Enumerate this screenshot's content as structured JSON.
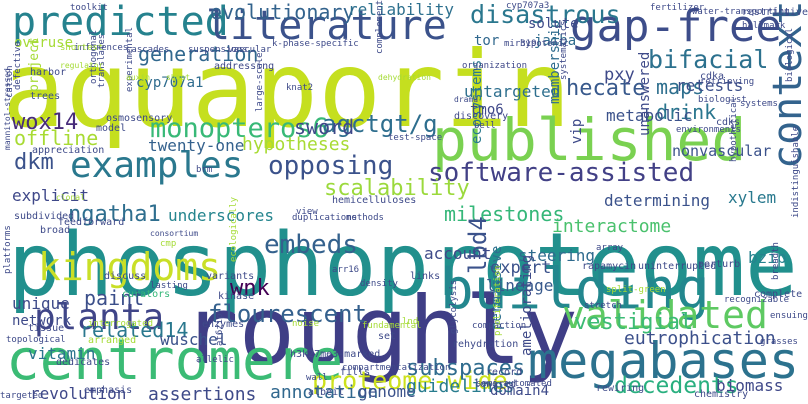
{
  "words": [
    {
      "text": "aquaporin",
      "color": "#c5df1f"
    },
    {
      "text": "phosphoproteome",
      "color": "#21908d"
    },
    {
      "text": "roughly",
      "color": "#3f3e86"
    },
    {
      "text": "published",
      "color": "#7ad151"
    },
    {
      "text": "centromere",
      "color": "#3bbb75"
    },
    {
      "text": "building",
      "color": "#23878e"
    },
    {
      "text": "megabases",
      "color": "#2c728e"
    },
    {
      "text": "gap-free",
      "color": "#3d4d8a"
    },
    {
      "text": "predicted",
      "color": "#25828e"
    },
    {
      "text": "literature",
      "color": "#3b528b"
    },
    {
      "text": "kingdoms",
      "color": "#c9df27"
    },
    {
      "text": "validated",
      "color": "#5ec962"
    },
    {
      "text": "examples",
      "color": "#2a788e"
    },
    {
      "text": "planta",
      "color": "#404588"
    },
    {
      "text": "context",
      "color": "#33638d"
    },
    {
      "text": "software-assisted",
      "color": "#424086"
    },
    {
      "text": "proteome-wide",
      "color": "#cde11d"
    },
    {
      "text": "monopteros6",
      "color": "#38b977"
    },
    {
      "text": "disastrous",
      "color": "#2a778e"
    },
    {
      "text": "flourescent",
      "color": "#34608d"
    },
    {
      "text": "agctgt/g",
      "color": "#2e6e8e"
    },
    {
      "text": "opposing",
      "color": "#3b528b"
    },
    {
      "text": "bifacial",
      "color": "#2c718e"
    },
    {
      "text": "decedents",
      "color": "#29af7f"
    },
    {
      "text": "eutrophication",
      "color": "#3c508b"
    },
    {
      "text": "milestones",
      "color": "#35b779"
    },
    {
      "text": "evolutionary",
      "color": "#33638d"
    },
    {
      "text": "reliability",
      "color": "#2d708e"
    },
    {
      "text": "maps",
      "color": "#2e6f8e"
    },
    {
      "text": "drink",
      "color": "#2a768e"
    },
    {
      "text": "wox14",
      "color": "#472c7a"
    },
    {
      "text": "dkm",
      "color": "#3b528b"
    },
    {
      "text": "offline",
      "color": "#a8db34"
    },
    {
      "text": "embeds",
      "color": "#34618d"
    },
    {
      "text": "related14",
      "color": "#2a788e"
    },
    {
      "text": "scalability",
      "color": "#9bd93c"
    },
    {
      "text": "lbd4",
      "color": "#3b528b"
    },
    {
      "text": "subspaces",
      "color": "#2f6c8e"
    },
    {
      "text": "vestigial",
      "color": "#3cbb75"
    },
    {
      "text": "generation",
      "color": "#31688e"
    },
    {
      "text": "hecate",
      "color": "#38598c"
    },
    {
      "text": "interactome",
      "color": "#4ac16d"
    },
    {
      "text": "wnk",
      "color": "#440154"
    },
    {
      "text": "ngatha1",
      "color": "#2e6e8e"
    },
    {
      "text": "paint",
      "color": "#3c4f8a"
    },
    {
      "text": "sword",
      "color": "#3f4889"
    },
    {
      "text": "hypotheses",
      "color": "#a8db34"
    },
    {
      "text": "annotation",
      "color": "#31688e"
    },
    {
      "text": "assertions",
      "color": "#3e4a89"
    },
    {
      "text": "guidelines",
      "color": "#287c8e"
    },
    {
      "text": "genome",
      "color": "#3b528b"
    },
    {
      "text": "revolution",
      "color": "#3f4889"
    },
    {
      "text": "vitamin",
      "color": "#2b748e"
    },
    {
      "text": "wuschel",
      "color": "#3b528b"
    },
    {
      "text": "underscores",
      "color": "#25858e"
    },
    {
      "text": "twenty-one",
      "color": "#34618d"
    },
    {
      "text": "expert",
      "color": "#3b528b"
    },
    {
      "text": "lineage",
      "color": "#38598c"
    },
    {
      "text": "steering",
      "color": "#2f6b8e"
    },
    {
      "text": "account",
      "color": "#3e4a89"
    },
    {
      "text": "bzip",
      "color": "#26828e"
    },
    {
      "text": "xylem",
      "color": "#29798e"
    },
    {
      "text": "determining",
      "color": "#3b528b"
    },
    {
      "text": "untargeted",
      "color": "#2e6f8e"
    },
    {
      "text": "pxy",
      "color": "#3e4989"
    },
    {
      "text": "retests",
      "color": "#3c4f8a"
    },
    {
      "text": "metabolic",
      "color": "#3b528b"
    },
    {
      "text": "nonvascular",
      "color": "#3b528b"
    },
    {
      "text": "membership",
      "color": "#2f6c8e"
    },
    {
      "text": "ecosystems",
      "color": "#29798e"
    },
    {
      "text": "domain4",
      "color": "#3e4a89"
    },
    {
      "text": "biomass",
      "color": "#3f4889"
    },
    {
      "text": "unique",
      "color": "#3e4a89"
    },
    {
      "text": "network",
      "color": "#3e4a89"
    },
    {
      "text": "explicit",
      "color": "#3f4889"
    },
    {
      "text": "project",
      "color": "#a5db36"
    },
    {
      "text": "overuse",
      "color": "#a5db36"
    },
    {
      "text": "cyp707a1",
      "color": "#2f6c8e"
    },
    {
      "text": "tor",
      "color": "#31688e"
    },
    {
      "text": "jaiba",
      "color": "#2f6c8e"
    },
    {
      "text": "solute",
      "color": "#3e4a89"
    },
    {
      "text": "tmo6",
      "color": "#3f4889"
    },
    {
      "text": "vip",
      "color": "#3e4a89"
    },
    {
      "text": "unanswered",
      "color": "#3e4a89"
    },
    {
      "text": "ameliorating",
      "color": "#3e4a89"
    },
    {
      "text": "permissive",
      "color": "#2e6f8e"
    },
    {
      "text": "harbor",
      "color": "#3e4a89"
    },
    {
      "text": "trees",
      "color": "#3b528b"
    },
    {
      "text": "model",
      "color": "#3e4a89"
    },
    {
      "text": "curators",
      "color": "#35b779"
    },
    {
      "text": "organization",
      "color": "#3f4889"
    },
    {
      "text": "discovery",
      "color": "#3f4889"
    },
    {
      "text": "addressing",
      "color": "#3f4889"
    },
    {
      "text": "rapamycin",
      "color": "#3e4a89"
    },
    {
      "text": "uninterrupted",
      "color": "#3e4a89"
    },
    {
      "text": "record",
      "color": "#3e4a89"
    },
    {
      "text": "lowered",
      "color": "#3e4a89"
    },
    {
      "text": "rewiring",
      "color": "#3e4a89"
    },
    {
      "text": "chemistry",
      "color": "#3e4a89"
    },
    {
      "text": "enzymes",
      "color": "#3e4a89"
    },
    {
      "text": "set",
      "color": "#3e4a89"
    },
    {
      "text": "albeit",
      "color": "#3e4a89"
    },
    {
      "text": "fills",
      "color": "#3e4a89"
    },
    {
      "text": "h3k27me3-marked",
      "color": "#3e4a89"
    },
    {
      "text": "hemicelluloses",
      "color": "#3e4a89"
    },
    {
      "text": "brm",
      "color": "#3e4a89"
    },
    {
      "text": "appreciation",
      "color": "#3e4a89"
    },
    {
      "text": "osmosensory",
      "color": "#3e4a89"
    },
    {
      "text": "emphasis",
      "color": "#3e4a89"
    },
    {
      "text": "dedicates",
      "color": "#3e4a89"
    },
    {
      "text": "tissue",
      "color": "#3e4a89"
    },
    {
      "text": "arranged",
      "color": "#a5db36"
    },
    {
      "text": "discuss",
      "color": "#3e4a89"
    },
    {
      "text": "variants",
      "color": "#3e4a89"
    },
    {
      "text": "kinase",
      "color": "#3e4a89"
    },
    {
      "text": "subdivided",
      "color": "#3e4a89"
    },
    {
      "text": "broad",
      "color": "#3e4a89"
    },
    {
      "text": "feedforward",
      "color": "#3e4a89"
    },
    {
      "text": "view",
      "color": "#3e4a89"
    },
    {
      "text": "test-space",
      "color": "#3e4a89"
    },
    {
      "text": "links",
      "color": "#3e4a89"
    },
    {
      "text": "rehydration",
      "color": "#3e4a89"
    },
    {
      "text": "perturb",
      "color": "#3e4a89"
    },
    {
      "text": "complete",
      "color": "#3e4a89"
    },
    {
      "text": "cdka",
      "color": "#3e4a89"
    },
    {
      "text": "cdks",
      "color": "#3e4a89"
    },
    {
      "text": "biologist",
      "color": "#3e4a89"
    },
    {
      "text": "environments",
      "color": "#3e4a89"
    },
    {
      "text": "systems",
      "color": "#3e4a89"
    },
    {
      "text": "retrieving",
      "color": "#3e4a89"
    },
    {
      "text": "restrictive",
      "color": "#3e4a89"
    },
    {
      "text": "fertilizer",
      "color": "#3e4a89"
    },
    {
      "text": "toolkit",
      "color": "#3e4a89"
    },
    {
      "text": "cyp707a3",
      "color": "#3e4a89"
    },
    {
      "text": "mir319",
      "color": "#3e4a89"
    },
    {
      "text": "hypotonic",
      "color": "#3e4a89"
    },
    {
      "text": "cascades",
      "color": "#3e4a89"
    },
    {
      "text": "suspensions",
      "color": "#3e4a89"
    },
    {
      "text": "vascular",
      "color": "#3e4a89"
    },
    {
      "text": "orthogonal",
      "color": "#3e4a89"
    },
    {
      "text": "knat2",
      "color": "#3e4a89"
    },
    {
      "text": "large-scale",
      "color": "#3e4a89"
    },
    {
      "text": "bell",
      "color": "#3e4a89"
    },
    {
      "text": "arr16",
      "color": "#3e4a89"
    },
    {
      "text": "density",
      "color": "#3e4a89"
    },
    {
      "text": "split-green",
      "color": "#a5db36"
    },
    {
      "text": "at6zip",
      "color": "#3e4a89"
    },
    {
      "text": "lasting",
      "color": "#3e4a89"
    },
    {
      "text": "interrogated",
      "color": "#a5db36"
    },
    {
      "text": "breadth",
      "color": "#3e4a89"
    },
    {
      "text": "duplications",
      "color": "#3e4a89"
    },
    {
      "text": "methods",
      "color": "#3e4a89"
    },
    {
      "text": "glycolysis",
      "color": "#3e4a89"
    },
    {
      "text": "semi-automated",
      "color": "#3e4a89"
    },
    {
      "text": "compartmentalization",
      "color": "#3e4a89"
    },
    {
      "text": "indistinguishable",
      "color": "#3e4a89"
    },
    {
      "text": "biological",
      "color": "#3e4a89"
    },
    {
      "text": "ensuing",
      "color": "#3e4a89"
    },
    {
      "text": "recognizable",
      "color": "#3e4a89"
    },
    {
      "text": "stretch",
      "color": "#3e4a89"
    },
    {
      "text": "compaction",
      "color": "#3e4a89"
    },
    {
      "text": "targeted",
      "color": "#3e4a89"
    },
    {
      "text": "defective",
      "color": "#3e4a89"
    },
    {
      "text": "inferences",
      "color": "#3e4a89"
    },
    {
      "text": "shortest",
      "color": "#a5db36"
    },
    {
      "text": "translates",
      "color": "#3e4a89"
    },
    {
      "text": "experimental",
      "color": "#3e4a89"
    },
    {
      "text": "noise",
      "color": "#a5db36"
    },
    {
      "text": "ecologically",
      "color": "#a5db36"
    },
    {
      "text": "systematics",
      "color": "#3e4a89"
    },
    {
      "text": "hypothetical",
      "color": "#3e4a89"
    },
    {
      "text": "cation",
      "color": "#3e4a89"
    },
    {
      "text": "topological",
      "color": "#3e4a89"
    },
    {
      "text": "platforms",
      "color": "#3e4a89"
    },
    {
      "text": "mannitol-stressed",
      "color": "#3e4a89"
    },
    {
      "text": "grasses",
      "color": "#3e4a89"
    },
    {
      "text": "array",
      "color": "#3e4a89"
    },
    {
      "text": "proliferation",
      "color": "#a5db36"
    },
    {
      "text": "lnd",
      "color": "#a5db36"
    },
    {
      "text": "wall",
      "color": "#3e4a89"
    },
    {
      "text": "allelic",
      "color": "#3e4a89"
    },
    {
      "text": "fundamental",
      "color": "#a5db36"
    },
    {
      "text": "cmp",
      "color": "#a5db36"
    },
    {
      "text": "water-transporting",
      "color": "#3e4a89"
    },
    {
      "text": "hallmark",
      "color": "#3e4a89"
    },
    {
      "text": "k-phase-specific",
      "color": "#3e4a89"
    },
    {
      "text": "complement",
      "color": "#3e4a89"
    },
    {
      "text": "regulator",
      "color": "#a5db36"
    },
    {
      "text": "auxin",
      "color": "#a5db36"
    },
    {
      "text": "shoot",
      "color": "#a5db36"
    },
    {
      "text": "dehydration",
      "color": "#a5db36"
    },
    {
      "text": "drama",
      "color": "#3e4a89"
    },
    {
      "text": "clonal",
      "color": "#a5db36"
    },
    {
      "text": "consortium",
      "color": "#3e4a89"
    }
  ]
}
